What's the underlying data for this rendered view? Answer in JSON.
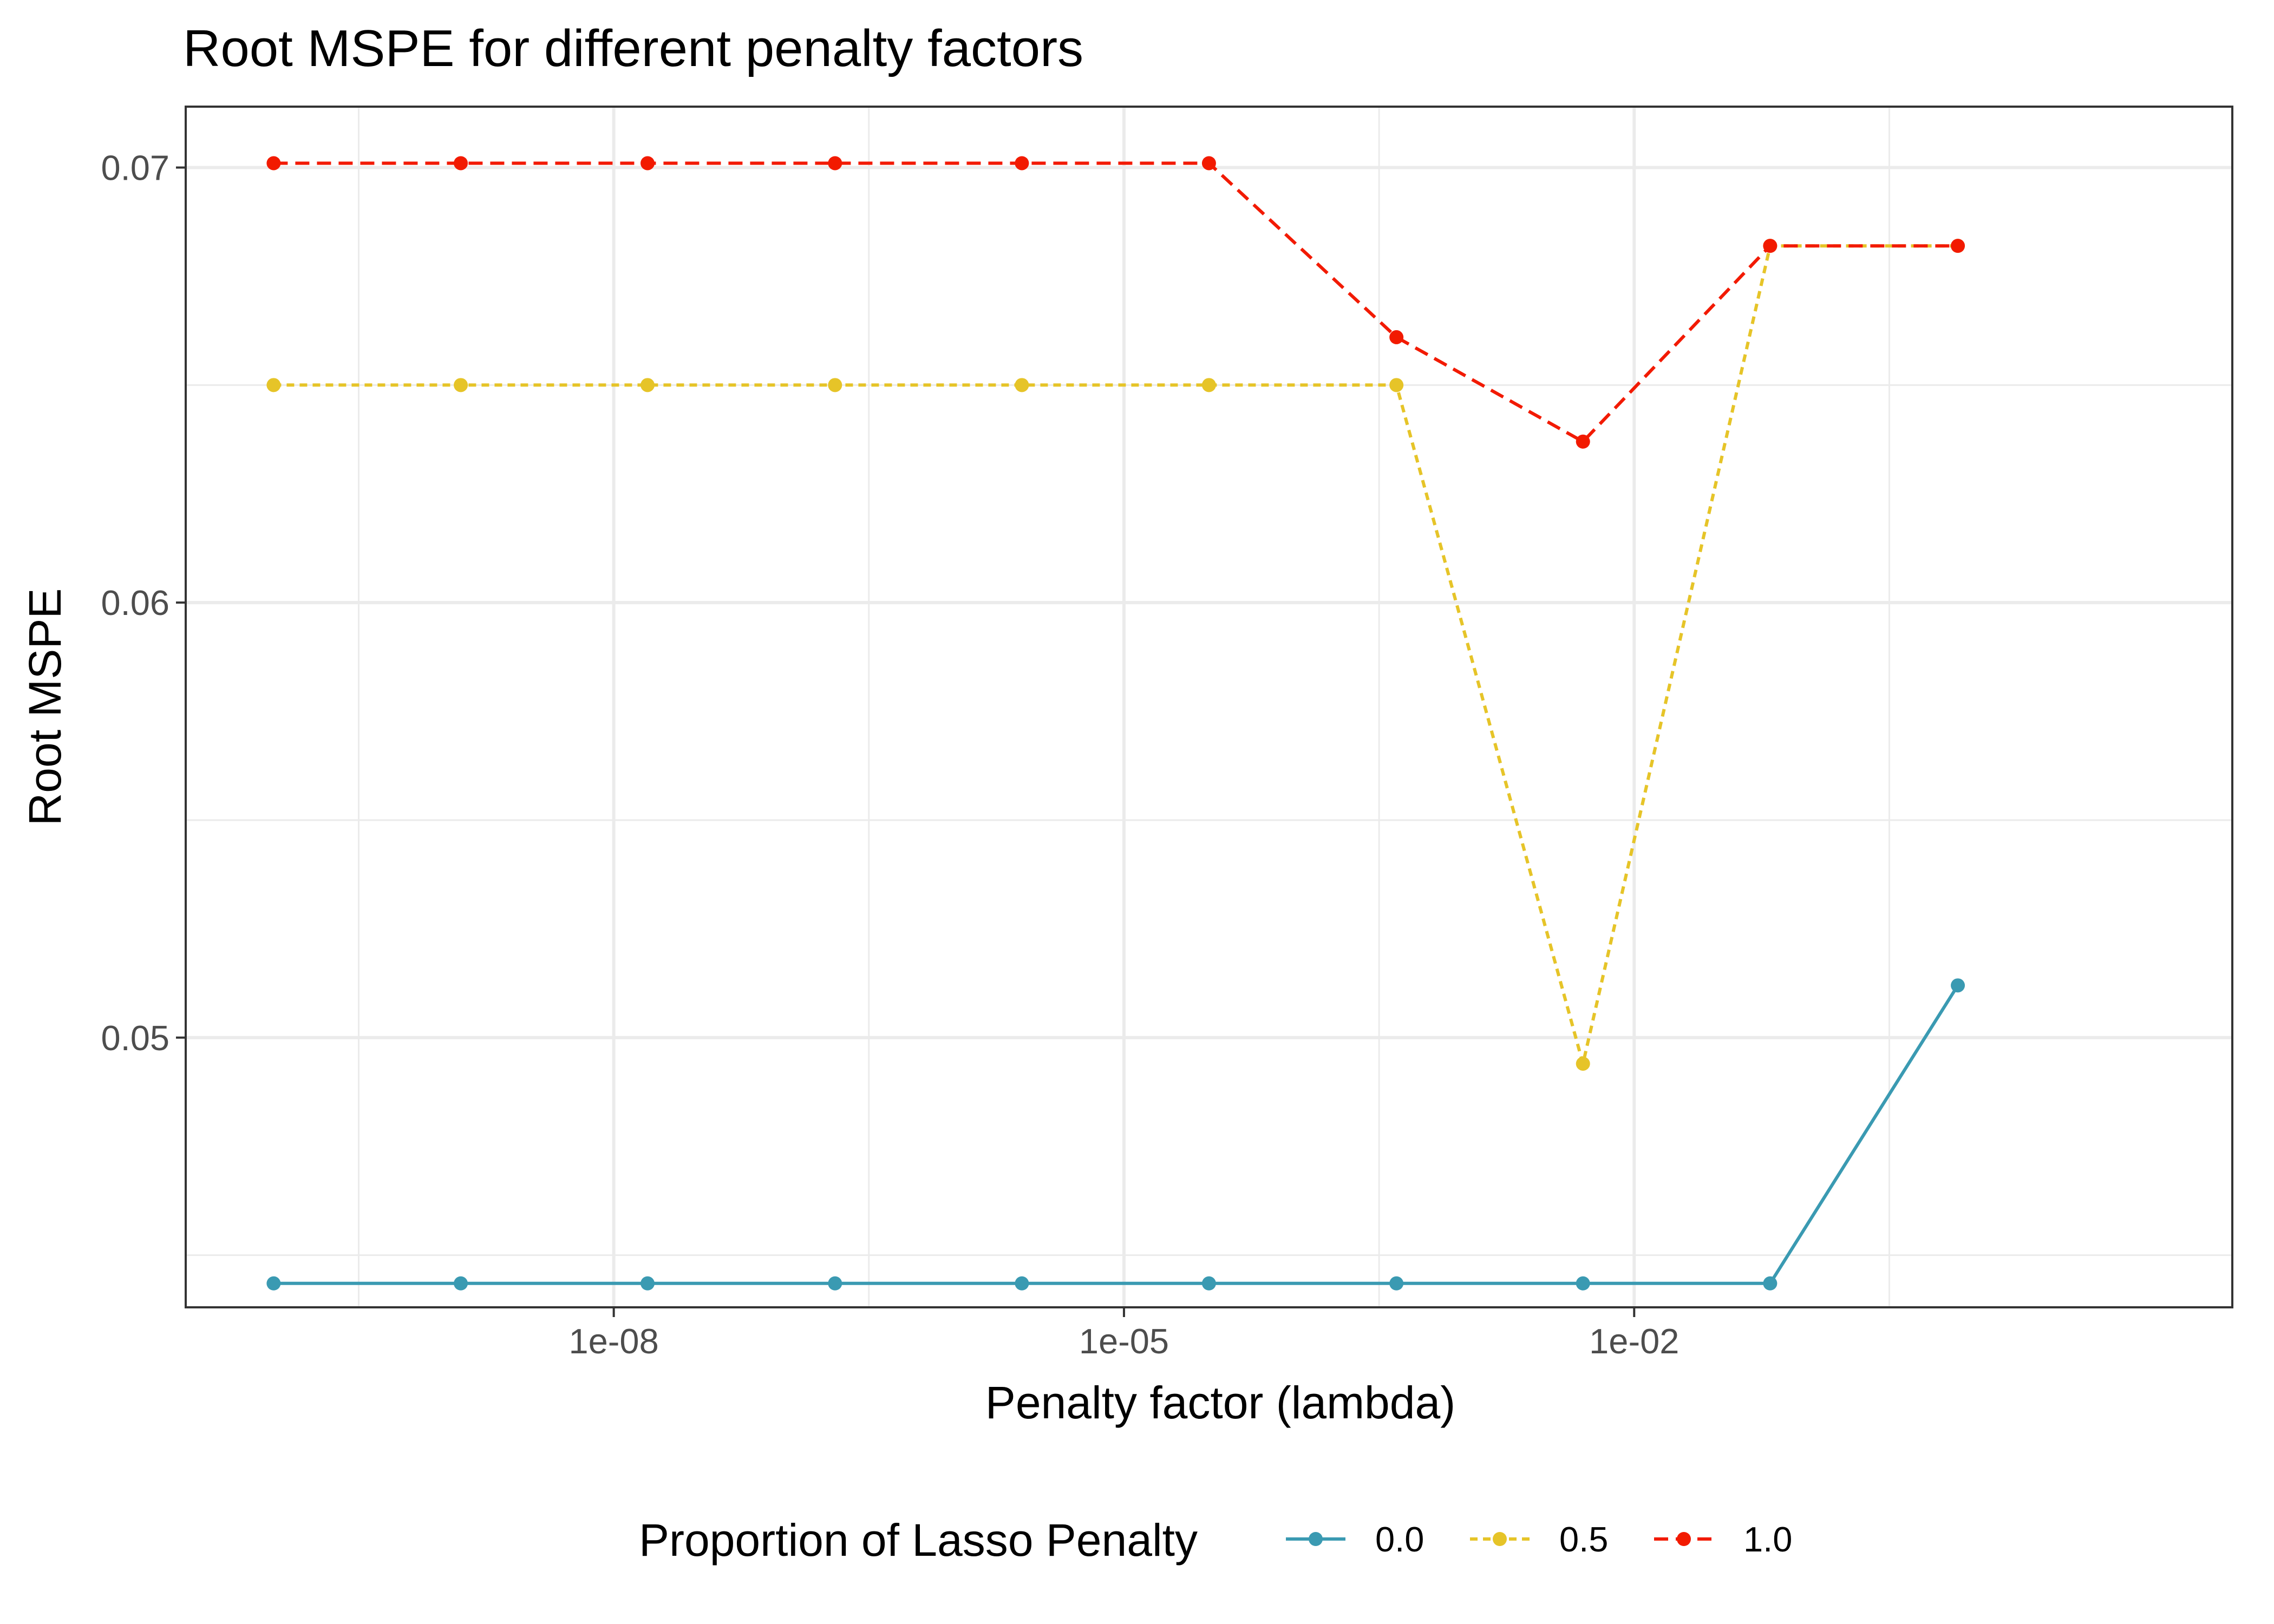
{
  "chart_data": {
    "type": "line",
    "title": "Root MSPE for different penalty factors",
    "xlabel": "Penalty factor (lambda)",
    "ylabel": "Root MSPE",
    "x_scale": "log10",
    "xlim": [
      1e-10,
      10
    ],
    "ylim": [
      0.0438,
      0.0714
    ],
    "x_ticks": [
      1e-08,
      1e-05,
      0.01
    ],
    "x_tick_labels": [
      "1e-08",
      "1e-05",
      "1e-02"
    ],
    "y_ticks": [
      0.05,
      0.06,
      0.07
    ],
    "y_tick_labels": [
      "0.05",
      "0.06",
      "0.07"
    ],
    "grid": true,
    "legend": {
      "title": "Proportion of Lasso Penalty",
      "position": "bottom"
    },
    "x": [
      1e-10,
      1.26e-09,
      1.58e-08,
      2e-07,
      2.51e-06,
      3.16e-05,
      0.0004,
      0.005,
      0.063,
      0.8
    ],
    "series": [
      {
        "name": "0.0",
        "color": "#3a9ab2",
        "dash": "solid",
        "values": [
          0.04435,
          0.04435,
          0.04435,
          0.04435,
          0.04435,
          0.04435,
          0.04435,
          0.04435,
          0.04435,
          0.0512
        ]
      },
      {
        "name": "0.5",
        "color": "#e6c428",
        "dash": "dotted",
        "values": [
          0.065,
          0.065,
          0.065,
          0.065,
          0.065,
          0.065,
          0.065,
          0.0494,
          0.0682,
          0.0682
        ]
      },
      {
        "name": "1.0",
        "color": "#f21a00",
        "dash": "dashed",
        "values": [
          0.0701,
          0.0701,
          0.0701,
          0.0701,
          0.0701,
          0.0701,
          0.0661,
          0.0637,
          0.0682,
          0.0682
        ]
      }
    ]
  }
}
